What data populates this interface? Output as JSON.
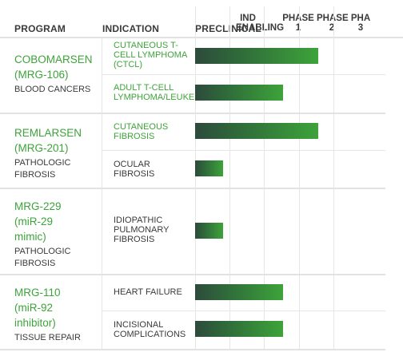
{
  "header": {
    "program": "PROGRAM",
    "indication": "INDICATION",
    "preclinical": "PRECLINICAL",
    "ind_enabling": [
      "IND",
      "ENABLING"
    ],
    "phase1": [
      "PHASE",
      "1"
    ],
    "phase2": [
      "PHASE",
      "2"
    ],
    "phase3": [
      "PHA",
      "3"
    ]
  },
  "programs": [
    {
      "name": "COBOMARSEN (MRG-106)",
      "category": "BLOOD CANCERS",
      "indications": [
        {
          "label": "CUTANEOUS T-CELL LYMPHOMA (CTCL)",
          "color": "green",
          "progress": 0.67
        },
        {
          "label": "ADULT T-CELL LYMPHOMA/LEUKEMIA",
          "color": "green",
          "progress": 0.48
        }
      ]
    },
    {
      "name": "REMLARSEN (MRG-201)",
      "category": "PATHOLOGIC FIBROSIS",
      "indications": [
        {
          "label": "CUTANEOUS FIBROSIS",
          "color": "green",
          "progress": 0.67
        },
        {
          "label": "OCULAR FIBROSIS",
          "color": "dark",
          "progress": 0.15
        }
      ]
    },
    {
      "name": "MRG-229 (miR-29 mimic)",
      "category": "PATHOLOGIC FIBROSIS",
      "indications": [
        {
          "label": "IDIOPATHIC PULMONARY FIBROSIS",
          "color": "dark",
          "progress": 0.15
        }
      ]
    },
    {
      "name": "MRG-110 (miR-92 inhibitor)",
      "category": "TISSUE REPAIR",
      "indications": [
        {
          "label": "HEART FAILURE",
          "color": "dark",
          "progress": 0.48
        },
        {
          "label": "INCISIONAL COMPLICATIONS",
          "color": "dark",
          "progress": 0.48
        }
      ]
    }
  ]
}
